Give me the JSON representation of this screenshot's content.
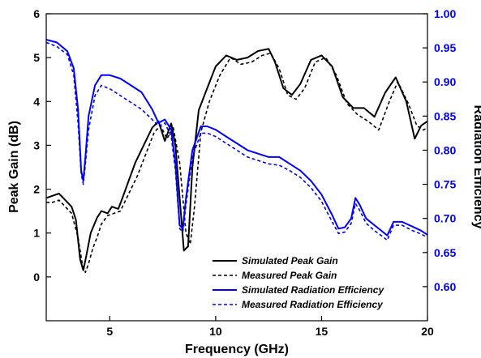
{
  "chart_data": {
    "type": "line",
    "xlabel": "Frequency (GHz)",
    "ylabel_left": "Peak Gain (dB)",
    "ylabel_right": "Radiation Efficiency",
    "xlim": [
      2,
      20
    ],
    "ylim_left": [
      -1,
      6
    ],
    "ylim_right": [
      0.55,
      1.0
    ],
    "xticks": [
      "5",
      "10",
      "15",
      "20"
    ],
    "yticks_left": [
      "0",
      "1",
      "2",
      "3",
      "4",
      "5",
      "6"
    ],
    "yticks_right": [
      "0.60",
      "0.65",
      "0.70",
      "0.75",
      "0.80",
      "0.85",
      "0.90",
      "0.95",
      "1.00"
    ],
    "grid": false,
    "legend_position": "bottom-right",
    "colors": {
      "gain": "#000000",
      "efficiency": "#0000ff"
    },
    "series": [
      {
        "name": "Simulated Peak Gain",
        "axis": "left",
        "style": "solid",
        "color": "#000000",
        "points": [
          [
            2.0,
            1.8
          ],
          [
            2.3,
            1.85
          ],
          [
            2.6,
            1.9
          ],
          [
            2.9,
            1.75
          ],
          [
            3.2,
            1.6
          ],
          [
            3.4,
            1.3
          ],
          [
            3.6,
            0.4
          ],
          [
            3.75,
            0.15
          ],
          [
            3.9,
            0.5
          ],
          [
            4.1,
            1.0
          ],
          [
            4.4,
            1.35
          ],
          [
            4.6,
            1.5
          ],
          [
            4.9,
            1.45
          ],
          [
            5.1,
            1.6
          ],
          [
            5.4,
            1.55
          ],
          [
            5.6,
            1.8
          ],
          [
            5.9,
            2.2
          ],
          [
            6.2,
            2.6
          ],
          [
            6.6,
            3.0
          ],
          [
            7.0,
            3.4
          ],
          [
            7.3,
            3.55
          ],
          [
            7.6,
            3.1
          ],
          [
            7.9,
            3.5
          ],
          [
            8.1,
            3.0
          ],
          [
            8.3,
            1.8
          ],
          [
            8.5,
            0.6
          ],
          [
            8.7,
            0.7
          ],
          [
            8.9,
            2.5
          ],
          [
            9.2,
            3.8
          ],
          [
            9.6,
            4.3
          ],
          [
            10.0,
            4.8
          ],
          [
            10.5,
            5.05
          ],
          [
            11.0,
            4.95
          ],
          [
            11.5,
            5.0
          ],
          [
            12.0,
            5.15
          ],
          [
            12.5,
            5.2
          ],
          [
            12.8,
            4.9
          ],
          [
            13.2,
            4.3
          ],
          [
            13.6,
            4.15
          ],
          [
            14.0,
            4.4
          ],
          [
            14.5,
            4.95
          ],
          [
            15.0,
            5.05
          ],
          [
            15.5,
            4.8
          ],
          [
            16.0,
            4.1
          ],
          [
            16.5,
            3.85
          ],
          [
            17.0,
            3.85
          ],
          [
            17.5,
            3.65
          ],
          [
            18.0,
            4.2
          ],
          [
            18.5,
            4.55
          ],
          [
            19.0,
            4.0
          ],
          [
            19.4,
            3.15
          ],
          [
            19.7,
            3.45
          ],
          [
            20.0,
            3.55
          ]
        ]
      },
      {
        "name": "Measured Peak Gain",
        "axis": "left",
        "style": "dashed",
        "color": "#000000",
        "points": [
          [
            2.0,
            1.7
          ],
          [
            2.3,
            1.7
          ],
          [
            2.6,
            1.75
          ],
          [
            2.9,
            1.6
          ],
          [
            3.2,
            1.45
          ],
          [
            3.5,
            0.9
          ],
          [
            3.7,
            0.3
          ],
          [
            3.85,
            0.1
          ],
          [
            4.0,
            0.3
          ],
          [
            4.2,
            0.65
          ],
          [
            4.4,
            0.9
          ],
          [
            4.6,
            1.2
          ],
          [
            4.9,
            1.4
          ],
          [
            5.2,
            1.45
          ],
          [
            5.5,
            1.5
          ],
          [
            5.9,
            1.9
          ],
          [
            6.3,
            2.3
          ],
          [
            6.7,
            2.8
          ],
          [
            7.1,
            3.3
          ],
          [
            7.4,
            3.45
          ],
          [
            7.7,
            3.15
          ],
          [
            8.0,
            3.4
          ],
          [
            8.3,
            2.6
          ],
          [
            8.6,
            1.0
          ],
          [
            8.8,
            0.75
          ],
          [
            9.0,
            1.6
          ],
          [
            9.3,
            3.3
          ],
          [
            9.7,
            4.0
          ],
          [
            10.2,
            4.6
          ],
          [
            10.7,
            5.0
          ],
          [
            11.2,
            4.85
          ],
          [
            11.7,
            4.9
          ],
          [
            12.2,
            5.05
          ],
          [
            12.6,
            5.1
          ],
          [
            13.0,
            4.75
          ],
          [
            13.4,
            4.15
          ],
          [
            13.8,
            4.05
          ],
          [
            14.2,
            4.3
          ],
          [
            14.7,
            4.9
          ],
          [
            15.2,
            5.0
          ],
          [
            15.7,
            4.6
          ],
          [
            16.2,
            3.95
          ],
          [
            16.7,
            3.7
          ],
          [
            17.2,
            3.55
          ],
          [
            17.7,
            3.35
          ],
          [
            18.2,
            4.0
          ],
          [
            18.6,
            4.45
          ],
          [
            19.1,
            3.95
          ],
          [
            19.5,
            3.45
          ],
          [
            19.8,
            3.35
          ],
          [
            20.0,
            3.4
          ]
        ]
      },
      {
        "name": "Simulated Radiation Efficiency",
        "axis": "right",
        "style": "solid",
        "color": "#0000ff",
        "points": [
          [
            2.0,
            0.962
          ],
          [
            2.5,
            0.958
          ],
          [
            3.0,
            0.945
          ],
          [
            3.3,
            0.92
          ],
          [
            3.5,
            0.86
          ],
          [
            3.65,
            0.77
          ],
          [
            3.75,
            0.755
          ],
          [
            3.85,
            0.79
          ],
          [
            4.0,
            0.85
          ],
          [
            4.3,
            0.895
          ],
          [
            4.6,
            0.91
          ],
          [
            5.0,
            0.91
          ],
          [
            5.5,
            0.905
          ],
          [
            6.0,
            0.895
          ],
          [
            6.5,
            0.885
          ],
          [
            7.0,
            0.86
          ],
          [
            7.3,
            0.84
          ],
          [
            7.6,
            0.845
          ],
          [
            7.9,
            0.83
          ],
          [
            8.1,
            0.78
          ],
          [
            8.3,
            0.69
          ],
          [
            8.45,
            0.685
          ],
          [
            8.6,
            0.73
          ],
          [
            8.9,
            0.8
          ],
          [
            9.3,
            0.835
          ],
          [
            9.6,
            0.835
          ],
          [
            10.0,
            0.83
          ],
          [
            10.5,
            0.82
          ],
          [
            11.0,
            0.81
          ],
          [
            11.5,
            0.8
          ],
          [
            12.0,
            0.795
          ],
          [
            12.5,
            0.79
          ],
          [
            13.0,
            0.79
          ],
          [
            13.5,
            0.78
          ],
          [
            14.0,
            0.77
          ],
          [
            14.5,
            0.755
          ],
          [
            15.0,
            0.735
          ],
          [
            15.5,
            0.705
          ],
          [
            15.8,
            0.685
          ],
          [
            16.1,
            0.687
          ],
          [
            16.4,
            0.7
          ],
          [
            16.6,
            0.73
          ],
          [
            16.8,
            0.72
          ],
          [
            17.1,
            0.7
          ],
          [
            17.5,
            0.69
          ],
          [
            17.9,
            0.68
          ],
          [
            18.1,
            0.675
          ],
          [
            18.4,
            0.695
          ],
          [
            18.8,
            0.695
          ],
          [
            19.3,
            0.688
          ],
          [
            19.7,
            0.682
          ],
          [
            20.0,
            0.676
          ]
        ]
      },
      {
        "name": "Measured Radiation Efficiency",
        "axis": "right",
        "style": "dashed",
        "color": "#0000ff",
        "points": [
          [
            2.0,
            0.958
          ],
          [
            2.5,
            0.952
          ],
          [
            3.0,
            0.94
          ],
          [
            3.3,
            0.91
          ],
          [
            3.5,
            0.84
          ],
          [
            3.65,
            0.765
          ],
          [
            3.75,
            0.75
          ],
          [
            3.85,
            0.78
          ],
          [
            4.0,
            0.83
          ],
          [
            4.3,
            0.88
          ],
          [
            4.6,
            0.895
          ],
          [
            5.0,
            0.89
          ],
          [
            5.5,
            0.88
          ],
          [
            6.0,
            0.87
          ],
          [
            6.5,
            0.86
          ],
          [
            7.0,
            0.845
          ],
          [
            7.3,
            0.835
          ],
          [
            7.6,
            0.84
          ],
          [
            7.9,
            0.82
          ],
          [
            8.1,
            0.77
          ],
          [
            8.3,
            0.685
          ],
          [
            8.45,
            0.68
          ],
          [
            8.6,
            0.72
          ],
          [
            8.9,
            0.79
          ],
          [
            9.3,
            0.825
          ],
          [
            9.6,
            0.825
          ],
          [
            10.0,
            0.82
          ],
          [
            10.5,
            0.81
          ],
          [
            11.0,
            0.8
          ],
          [
            11.5,
            0.79
          ],
          [
            12.0,
            0.785
          ],
          [
            12.5,
            0.78
          ],
          [
            13.0,
            0.778
          ],
          [
            13.5,
            0.77
          ],
          [
            14.0,
            0.76
          ],
          [
            14.5,
            0.745
          ],
          [
            15.0,
            0.725
          ],
          [
            15.5,
            0.695
          ],
          [
            15.8,
            0.678
          ],
          [
            16.1,
            0.68
          ],
          [
            16.4,
            0.693
          ],
          [
            16.6,
            0.722
          ],
          [
            16.8,
            0.712
          ],
          [
            17.1,
            0.693
          ],
          [
            17.5,
            0.682
          ],
          [
            17.9,
            0.673
          ],
          [
            18.1,
            0.668
          ],
          [
            18.4,
            0.69
          ],
          [
            18.8,
            0.69
          ],
          [
            19.3,
            0.682
          ],
          [
            19.7,
            0.677
          ],
          [
            20.0,
            0.672
          ]
        ]
      }
    ]
  }
}
